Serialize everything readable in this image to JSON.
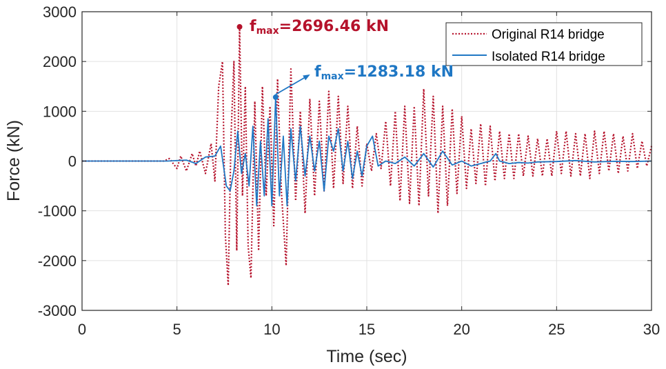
{
  "chart_data": {
    "type": "line",
    "title": "",
    "xlabel": "Time (sec)",
    "ylabel": "Force (kN)",
    "xlim": [
      0,
      30
    ],
    "ylim": [
      -3000,
      3000
    ],
    "grid": true,
    "legend_position": "top-right",
    "x_ticks": [
      "0",
      "5",
      "10",
      "15",
      "20",
      "25",
      "30"
    ],
    "y_ticks": [
      "3000",
      "2000",
      "1000",
      "0",
      "-1000",
      "-2000",
      "-3000"
    ],
    "colors": {
      "original": "#b5122b",
      "isolated": "#1f77c4",
      "grid": "#e1e1e1",
      "axes": "#262626"
    },
    "series": [
      {
        "name": "Original R14 bridge",
        "style": "dotted",
        "x": [
          0,
          4.3,
          4.6,
          5.0,
          5.2,
          5.5,
          5.8,
          6.0,
          6.2,
          6.5,
          6.8,
          7.0,
          7.2,
          7.4,
          7.55,
          7.7,
          7.85,
          8.0,
          8.15,
          8.3,
          8.45,
          8.6,
          8.75,
          8.9,
          9.1,
          9.3,
          9.5,
          9.7,
          9.9,
          10.1,
          10.3,
          10.5,
          10.75,
          11.0,
          11.25,
          11.5,
          11.75,
          12.0,
          12.25,
          12.5,
          12.75,
          13.0,
          13.25,
          13.5,
          13.75,
          14.0,
          14.25,
          14.5,
          14.75,
          15.0,
          15.25,
          15.5,
          15.75,
          16.0,
          16.25,
          16.5,
          16.75,
          17.0,
          17.25,
          17.5,
          17.75,
          18.0,
          18.25,
          18.5,
          18.75,
          19.0,
          19.25,
          19.5,
          19.75,
          20.0,
          20.25,
          20.5,
          20.75,
          21.0,
          21.25,
          21.5,
          21.75,
          22.0,
          22.25,
          22.5,
          22.75,
          23.0,
          23.25,
          23.5,
          23.75,
          24.0,
          24.25,
          24.5,
          24.75,
          25.0,
          25.25,
          25.5,
          25.75,
          26.0,
          26.25,
          26.5,
          26.75,
          27.0,
          27.25,
          27.5,
          27.75,
          28.0,
          28.25,
          28.5,
          28.75,
          29.0,
          29.25,
          29.5,
          29.75,
          30.0
        ],
        "y": [
          0,
          0,
          50,
          -150,
          100,
          -200,
          150,
          -100,
          200,
          -250,
          350,
          -400,
          1500,
          2000,
          -1500,
          -2500,
          500,
          2000,
          -1800,
          2696.46,
          -700,
          1500,
          -1700,
          -2350,
          1200,
          -1800,
          1500,
          -700,
          1100,
          -1300,
          1650,
          -600,
          -2100,
          1850,
          -800,
          1000,
          -1050,
          1250,
          -700,
          1200,
          -600,
          1400,
          -550,
          1300,
          -450,
          1100,
          -550,
          700,
          -500,
          350,
          -200,
          550,
          -150,
          800,
          -500,
          1000,
          -800,
          1100,
          -850,
          1100,
          -900,
          1450,
          -700,
          1300,
          -1050,
          1100,
          -900,
          1050,
          -650,
          900,
          -550,
          650,
          -450,
          750,
          -500,
          700,
          -400,
          600,
          -350,
          550,
          -350,
          550,
          -300,
          500,
          -300,
          450,
          -300,
          450,
          -300,
          600,
          -250,
          600,
          -300,
          550,
          -300,
          550,
          -350,
          600,
          -250,
          600,
          -200,
          550,
          -250,
          500,
          -200,
          550,
          -150,
          400,
          -100,
          300
        ]
      },
      {
        "name": "Isolated R14 bridge",
        "style": "solid",
        "x": [
          0,
          4.5,
          5.5,
          6.0,
          6.5,
          7.0,
          7.3,
          7.6,
          7.8,
          8.0,
          8.2,
          8.4,
          8.6,
          8.8,
          9.0,
          9.2,
          9.4,
          9.6,
          9.8,
          10.0,
          10.2,
          10.4,
          10.6,
          10.8,
          11.0,
          11.25,
          11.5,
          11.75,
          12.0,
          12.25,
          12.5,
          12.75,
          13.0,
          13.25,
          13.5,
          13.75,
          14.0,
          14.25,
          14.5,
          14.75,
          15.0,
          15.3,
          15.6,
          16.0,
          16.5,
          17.0,
          17.5,
          18.0,
          18.5,
          19.0,
          19.5,
          20.0,
          20.5,
          21.0,
          21.5,
          21.8,
          22.0,
          22.5,
          23.0,
          23.5,
          24.0,
          25.0,
          26.0,
          27.0,
          28.0,
          29.0,
          30.0
        ],
        "y": [
          0,
          0,
          20,
          -50,
          80,
          100,
          300,
          -500,
          -600,
          -200,
          600,
          -250,
          150,
          -500,
          700,
          -900,
          400,
          -700,
          850,
          -900,
          1283.18,
          -700,
          500,
          -900,
          650,
          -400,
          700,
          -300,
          500,
          -200,
          400,
          -600,
          500,
          200,
          650,
          -200,
          400,
          -350,
          200,
          -300,
          300,
          500,
          -100,
          0,
          -50,
          80,
          -100,
          150,
          -120,
          200,
          -80,
          0,
          -100,
          -50,
          0,
          150,
          0,
          -50,
          -30,
          -40,
          -20,
          -10,
          10,
          -20,
          -5,
          -10,
          0
        ]
      }
    ],
    "annotations": [
      {
        "label_main": "f",
        "label_sub": "max",
        "label_rest": "=2696.46 kN",
        "point": [
          8.3,
          2696.46
        ],
        "color": "#b5122b"
      },
      {
        "label_main": "f",
        "label_sub": "max",
        "label_rest": "=1283.18 kN",
        "point": [
          10.2,
          1283.18
        ],
        "color": "#1f77c4"
      }
    ]
  }
}
